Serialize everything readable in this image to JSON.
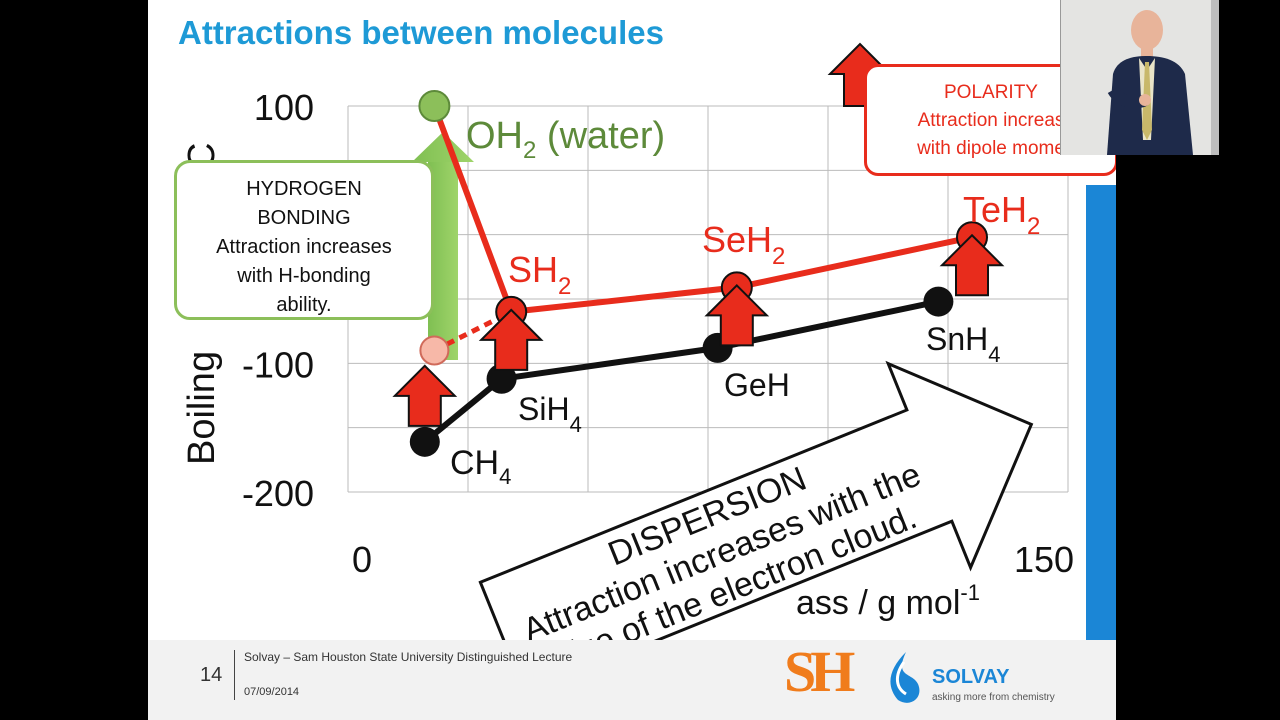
{
  "slide": {
    "title": "Attractions between molecules",
    "ylabel_visible": "Boiling",
    "ylabel_fragment": "C",
    "xlabel_visible": "ass / g mol",
    "xlabel_sup": "-1"
  },
  "labels": {
    "oh2": "OH",
    "oh2_sub": "2",
    "oh2_rest": " (water)",
    "sh2": "SH",
    "sh2_sub": "2",
    "seh2": "SeH",
    "seh2_sub": "2",
    "teh2": "TeH",
    "teh2_sub": "2",
    "ch4": "CH",
    "ch4_sub": "4",
    "sih4": "SiH",
    "sih4_sub": "4",
    "geh4": "GeH",
    "snh4": "SnH",
    "snh4_sub": "4"
  },
  "hbond_box": {
    "line1": "HYDROGEN",
    "line2": "BONDING",
    "line3": "Attraction increases",
    "line4": "with H-bonding",
    "line5": "ability."
  },
  "polarity_box": {
    "line1": "POLARITY",
    "line2": "Attraction increas",
    "line3": "with dipole mome"
  },
  "dispersion": {
    "line1": "DISPERSION",
    "line2": "Attraction increases with the",
    "line3": "size of the electron cloud."
  },
  "footer": {
    "page": "14",
    "text": "Solvay – Sam Houston State University Distinguished Lecture",
    "date": "07/09/2014",
    "logo_left": "SH",
    "logo_right": "SOLVAY",
    "tagline": "asking more from chemistry"
  },
  "colors": {
    "title": "#1e9ad6",
    "polar_series": "#e82c1c",
    "nonpolar_series": "#111111",
    "water": "#8cbf5a",
    "accent_bar": "#1b86d6"
  },
  "chart_data": {
    "type": "line",
    "xlim": [
      0,
      150
    ],
    "ylim": [
      -200,
      100
    ],
    "yticks": [
      100,
      -100,
      -200
    ],
    "xticks": [
      0,
      150
    ],
    "series": [
      {
        "points": [
          [
            18,
            100
          ],
          [
            34,
            -60
          ],
          [
            81,
            -41
          ],
          [
            130,
            -2
          ]
        ]
      },
      {
        "points": [
          [
            16,
            -161
          ],
          [
            32,
            -112
          ],
          [
            77,
            -88
          ],
          [
            123,
            -52
          ]
        ]
      }
    ],
    "hypothetical_water": [
      18,
      -90
    ],
    "grid": true
  }
}
